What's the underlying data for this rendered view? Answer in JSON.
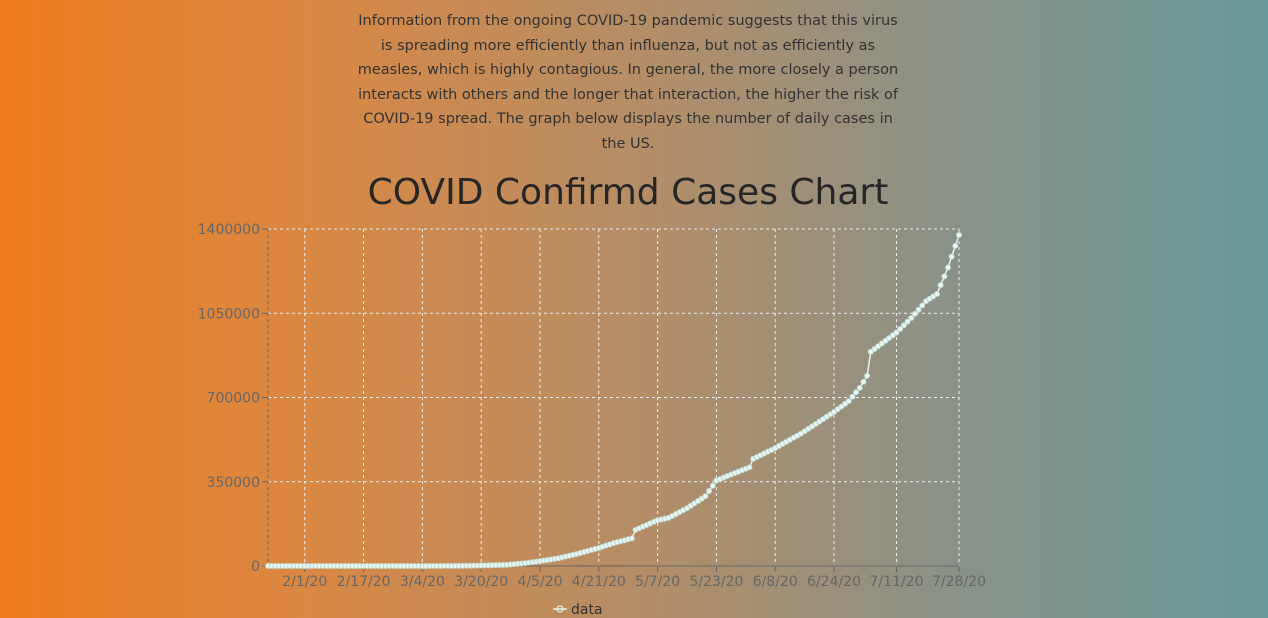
{
  "intro_text": "Information from the ongoing COVID-19 pandemic suggests that this virus is spreading more efficiently than influenza, but not as efficiently as measles, which is highly contagious. In general, the more closely a person interacts with others and the longer that interaction, the higher the risk of COVID-19 spread. The graph below displays the number of daily cases in the US.",
  "colors": {
    "gradient_left": "#ee7c1f",
    "gradient_right": "#6a9999",
    "series": "#e8f5f0",
    "grid": "#eeeeee"
  },
  "chart_data": {
    "type": "line",
    "title": "COVID Confirmd Cases Chart",
    "xlabel": "",
    "ylabel": "",
    "x_range": [
      "1/22/20",
      "7/28/20"
    ],
    "x_ticks": [
      "2/1/20",
      "2/17/20",
      "3/4/20",
      "3/20/20",
      "4/5/20",
      "4/21/20",
      "5/7/20",
      "5/23/20",
      "6/8/20",
      "6/24/20",
      "7/11/20",
      "7/28/20"
    ],
    "y_ticks": [
      0,
      350000,
      700000,
      1050000,
      1400000
    ],
    "ylim": [
      0,
      1400000
    ],
    "grid": true,
    "legend_position": "bottom",
    "series": [
      {
        "name": "data",
        "points": [
          [
            "1/22/20",
            0
          ],
          [
            "2/1/20",
            0
          ],
          [
            "2/17/20",
            0
          ],
          [
            "3/4/20",
            0
          ],
          [
            "3/15/20",
            500
          ],
          [
            "3/20/20",
            2000
          ],
          [
            "3/27/20",
            5000
          ],
          [
            "4/1/20",
            12000
          ],
          [
            "4/5/20",
            20000
          ],
          [
            "4/10/20",
            32000
          ],
          [
            "4/15/20",
            50000
          ],
          [
            "4/21/20",
            75000
          ],
          [
            "4/25/20",
            95000
          ],
          [
            "4/30/20",
            115000
          ],
          [
            "5/1/20",
            150000
          ],
          [
            "5/7/20",
            190000
          ],
          [
            "5/10/20",
            200000
          ],
          [
            "5/15/20",
            240000
          ],
          [
            "5/20/20",
            290000
          ],
          [
            "5/23/20",
            355000
          ],
          [
            "5/27/20",
            380000
          ],
          [
            "6/1/20",
            410000
          ],
          [
            "6/2/20",
            445000
          ],
          [
            "6/8/20",
            490000
          ],
          [
            "6/15/20",
            550000
          ],
          [
            "6/20/20",
            600000
          ],
          [
            "6/24/20",
            640000
          ],
          [
            "6/28/20",
            685000
          ],
          [
            "7/1/20",
            740000
          ],
          [
            "7/3/20",
            790000
          ],
          [
            "7/4/20",
            890000
          ],
          [
            "7/11/20",
            970000
          ],
          [
            "7/15/20",
            1030000
          ],
          [
            "7/19/20",
            1100000
          ],
          [
            "7/22/20",
            1130000
          ],
          [
            "7/25/20",
            1240000
          ],
          [
            "7/28/20",
            1375000
          ]
        ]
      }
    ]
  }
}
